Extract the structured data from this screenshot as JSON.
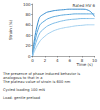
{
  "chart_data": {
    "type": "line",
    "x_label": "Time (s)",
    "y_label": "Strain (%)",
    "x": [
      0,
      1,
      2,
      3,
      4,
      5,
      6,
      7,
      8,
      9,
      10
    ],
    "series": [
      {
        "color": "#3a8fd0",
        "values": [
          0,
          70,
          82,
          86,
          88,
          89,
          90,
          90,
          90,
          88,
          76
        ]
      },
      {
        "color": "#5aa7dc",
        "values": [
          0,
          55,
          68,
          74,
          77,
          79,
          80,
          81,
          81,
          81,
          81
        ]
      },
      {
        "color": "#7dbbe6",
        "values": [
          0,
          40,
          54,
          61,
          65,
          68,
          70,
          71,
          72,
          72,
          72
        ]
      },
      {
        "color": "#a3d0ef",
        "values": [
          0,
          25,
          38,
          46,
          51,
          54,
          56,
          58,
          59,
          60,
          60
        ]
      }
    ],
    "xlim": [
      0,
      10
    ],
    "xticks": [
      0,
      2,
      4,
      6,
      8,
      10
    ],
    "ylim": [
      0,
      100
    ],
    "yticks": [
      0,
      20,
      40,
      60,
      80,
      100
    ],
    "grid": false,
    "annotations": [
      "Rated HV 6",
      "The presence of phase induced behavior is analogous to that in a",
      "The plateau value of strain is 600 nm",
      "Cycled loading 100 mN",
      "Load: gentle preload"
    ]
  }
}
